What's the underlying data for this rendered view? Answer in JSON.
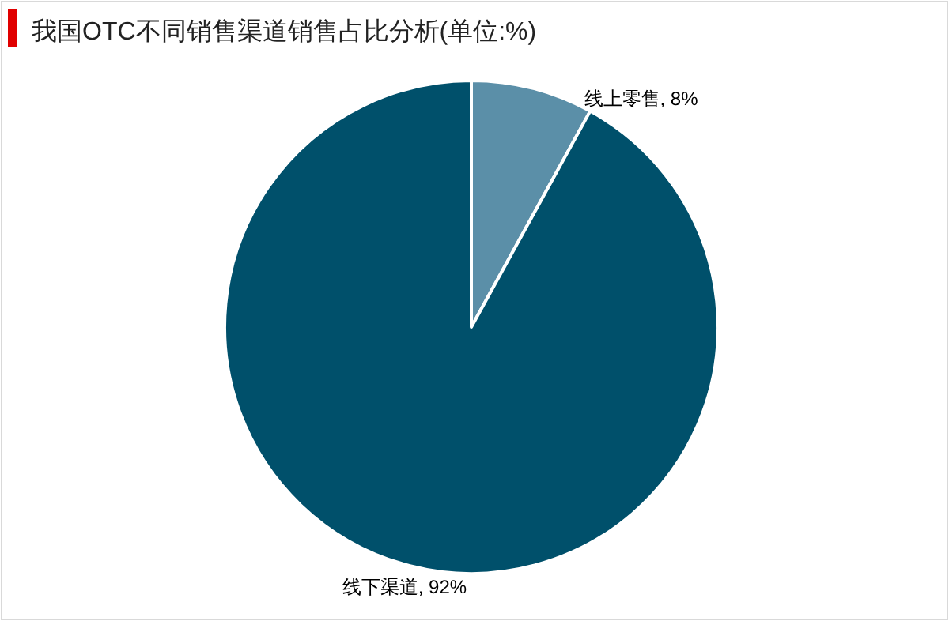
{
  "chart_data": {
    "type": "pie",
    "title": "我国OTC不同销售渠道销售占比分析(单位:%)",
    "categories": [
      "线上零售",
      "线下渠道"
    ],
    "values": [
      8,
      92
    ],
    "value_labels": [
      ", 8%",
      ", 92%"
    ],
    "colors": [
      "#5b8fa8",
      "#00506b"
    ]
  }
}
